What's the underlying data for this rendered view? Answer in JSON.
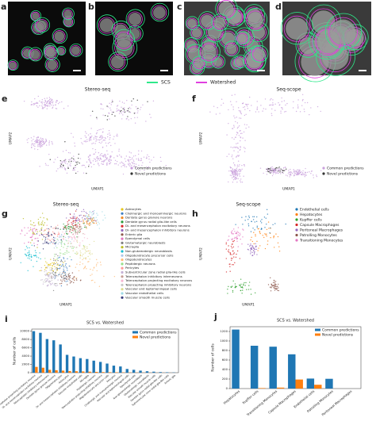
{
  "panels": [
    "a",
    "b",
    "c",
    "d"
  ],
  "segmentation_legend": [
    {
      "name": "SCS",
      "color": "#2ee88a"
    },
    {
      "name": "Watershed",
      "color": "#e040e0"
    }
  ],
  "chart_data": [
    {
      "type": "umap",
      "label": "e",
      "title": "Stereo-seq",
      "x_label": "UMAP1",
      "y_label": "UMAP2",
      "legend": [
        {
          "name": "Common predictions",
          "color": "#c9a0dc"
        },
        {
          "name": "Novel predictions",
          "color": "#333333"
        }
      ]
    },
    {
      "type": "umap",
      "label": "f",
      "title": "Seq-scope",
      "x_label": "UMAP1",
      "y_label": "UMAP2",
      "legend": [
        {
          "name": "Common predictions",
          "color": "#c9a0dc"
        },
        {
          "name": "Novel predictions",
          "color": "#333333"
        }
      ]
    },
    {
      "type": "umap",
      "label": "g",
      "title": "Stereo-seq",
      "x_label": "UMAP1",
      "y_label": "UMAP2",
      "legend": [
        {
          "name": "Astrocytes",
          "color": "#e6c619"
        },
        {
          "name": "Cholinergic and monoaminergic neurons",
          "color": "#3b7dc4"
        },
        {
          "name": "Dentate gyrus granule neurons",
          "color": "#f08a24"
        },
        {
          "name": "Dentate gyrus radial glia-like cells",
          "color": "#2c9c3a"
        },
        {
          "name": "Di- and mesencephalon excitatory neurons",
          "color": "#d62728"
        },
        {
          "name": "Di- and mesencephalon inhibitory neurons",
          "color": "#9467bd"
        },
        {
          "name": "Enteric glia",
          "color": "#8c564b"
        },
        {
          "name": "Ependymal cells",
          "color": "#e377c2"
        },
        {
          "name": "Glutamatergic neuroblasts",
          "color": "#7f7f7f"
        },
        {
          "name": "Microglia",
          "color": "#bcbd22"
        },
        {
          "name": "Non-glutamatergic neuroblasts",
          "color": "#17becf"
        },
        {
          "name": "Oligodendrocyte precursor cells",
          "color": "#aec7e8"
        },
        {
          "name": "Oligodendrocytes",
          "color": "#ffbb78"
        },
        {
          "name": "Peptidergic neurons",
          "color": "#98df8a"
        },
        {
          "name": "Pericytes",
          "color": "#ff9896"
        },
        {
          "name": "Subventricular zone radial glia-like cells",
          "color": "#c5b0d5"
        },
        {
          "name": "Telencephalon inhibitory interneurons",
          "color": "#c49c94"
        },
        {
          "name": "Telencephalon projecting excitatory neurons",
          "color": "#f7b6d2"
        },
        {
          "name": "Telencephalon projecting inhibitory neurons",
          "color": "#c7c7c7"
        },
        {
          "name": "Vascular and leptomeningeal cells",
          "color": "#dbdb8d"
        },
        {
          "name": "Vascular endothelial cells",
          "color": "#9edae5"
        },
        {
          "name": "Vascular smooth muscle cells",
          "color": "#393b79"
        }
      ]
    },
    {
      "type": "umap",
      "label": "h",
      "title": "Seq-scope",
      "x_label": "UMAP1",
      "y_label": "UMAP2",
      "legend": [
        {
          "name": "Endothelial cells",
          "color": "#1f77b4"
        },
        {
          "name": "Hepatocytes",
          "color": "#ff7f0e"
        },
        {
          "name": "Kupffer cells",
          "color": "#2ca02c"
        },
        {
          "name": "Capsule Macrophages",
          "color": "#d62728"
        },
        {
          "name": "Peritoneal Macrophages",
          "color": "#9467bd"
        },
        {
          "name": "Patrolling Monocytes",
          "color": "#8c564b"
        },
        {
          "name": "Transitioning Monocytes",
          "color": "#e377c2"
        }
      ]
    },
    {
      "type": "bar",
      "label": "i",
      "title": "SCS vs. Watershed",
      "y_label": "Number of cells",
      "ylim": [
        0,
        10500
      ],
      "yticks": [
        0,
        2000,
        4000,
        6000,
        8000,
        10000
      ],
      "categories": [
        "Telencephalon projecting excitatory neurons",
        "Di- and mesencephalon excitatory neurons",
        "Telencephalon inhibitory interneurons",
        "Dentate gyrus granule neurons",
        "Oligodendrocytes",
        "Astrocytes",
        "Di- and mesencephalon inhibitory neurons",
        "Vascular endothelial cells",
        "Microglia",
        "Peptidergic neurons",
        "Telencephalon projecting inhibitory neurons",
        "Oligodendrocyte precursor cells",
        "Pericytes",
        "Cholinergic and monoaminergic neurons",
        "Vascular and leptomeningeal cells",
        "Ependymal cells",
        "Non-glutamatergic neuroblasts",
        "Glutamatergic neuroblasts",
        "Vascular smooth muscle cells",
        "Dentate gyrus radial glia-like cells",
        "Subventricular zone radial glia-like cells",
        "Enteric glia"
      ],
      "series": [
        {
          "name": "Common predictions",
          "color": "#1f77b4",
          "values": [
            10000,
            9600,
            8100,
            7800,
            6800,
            4300,
            3900,
            3500,
            3300,
            2900,
            2600,
            2200,
            1700,
            1500,
            900,
            700,
            500,
            350,
            250,
            150,
            100,
            50
          ]
        },
        {
          "name": "Novel predictions",
          "color": "#ff7f0e",
          "values": [
            1400,
            1200,
            700,
            600,
            500,
            400,
            350,
            300,
            250,
            200,
            150,
            120,
            100,
            80,
            60,
            40,
            30,
            20,
            15,
            10,
            5,
            2
          ]
        }
      ]
    },
    {
      "type": "bar",
      "label": "j",
      "title": "SCS vs. Watershed",
      "y_label": "Number of cells",
      "ylim": [
        0,
        1300
      ],
      "yticks": [
        0,
        200,
        400,
        600,
        800,
        1000,
        1200
      ],
      "categories": [
        "Hepatocytes",
        "Kupffer cells",
        "Transitioning Monocytes",
        "Capsule Macrophages",
        "Endothelial cells",
        "Patrolling Monocytes",
        "Peritoneal Macrophages"
      ],
      "series": [
        {
          "name": "Common predictions",
          "color": "#1f77b4",
          "values": [
            1240,
            900,
            880,
            720,
            210,
            205,
            0
          ]
        },
        {
          "name": "Novel predictions",
          "color": "#ff7f0e",
          "values": [
            0,
            10,
            20,
            190,
            80,
            0,
            0
          ]
        }
      ]
    }
  ]
}
